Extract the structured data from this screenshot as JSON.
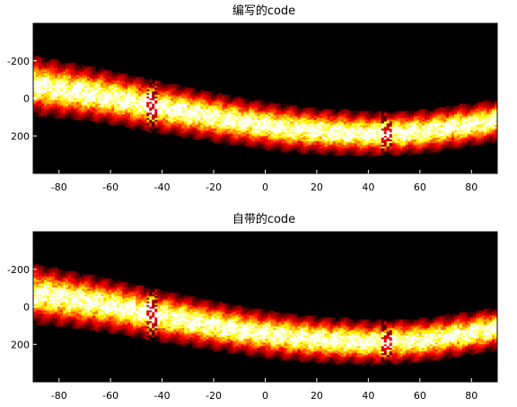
{
  "chart_data": [
    {
      "type": "heatmap",
      "title": "编写的code",
      "xlabel": "",
      "ylabel": "",
      "xlim": [
        -90,
        90
      ],
      "ylim": [
        -400,
        400
      ],
      "y_axis_reversed": true,
      "grid": false,
      "legend": "none",
      "colormap": "hot",
      "x_ticks": [
        -80,
        -60,
        -40,
        -20,
        0,
        20,
        40,
        60,
        80
      ],
      "x_tick_labels": [
        "-80",
        "-60",
        "-40",
        "-20",
        "0",
        "20",
        "40",
        "60",
        "80"
      ],
      "y_ticks": [
        -200,
        0,
        200
      ],
      "y_tick_labels": [
        "-200",
        "0",
        "200"
      ],
      "band": {
        "center_x": [
          -90,
          -80,
          -60,
          -40,
          -20,
          0,
          20,
          40,
          60,
          80,
          90
        ],
        "center_y": [
          -70,
          -50,
          -5,
          50,
          100,
          145,
          175,
          190,
          180,
          140,
          115
        ],
        "width": [
          270,
          260,
          245,
          235,
          225,
          215,
          210,
          205,
          200,
          195,
          195
        ]
      },
      "artifact_x": [
        -44,
        47
      ]
    },
    {
      "type": "heatmap",
      "title": "自带的code",
      "xlabel": "",
      "ylabel": "",
      "xlim": [
        -90,
        90
      ],
      "ylim": [
        -400,
        400
      ],
      "y_axis_reversed": true,
      "grid": false,
      "legend": "none",
      "colormap": "hot",
      "x_ticks": [
        -80,
        -60,
        -40,
        -20,
        0,
        20,
        40,
        60,
        80
      ],
      "x_tick_labels": [
        "-80",
        "-60",
        "-40",
        "-20",
        "0",
        "20",
        "40",
        "60",
        "80"
      ],
      "y_ticks": [
        -200,
        0,
        200
      ],
      "y_tick_labels": [
        "-200",
        "0",
        "200"
      ],
      "band": {
        "center_x": [
          -90,
          -80,
          -60,
          -40,
          -20,
          0,
          20,
          40,
          60,
          80,
          90
        ],
        "center_y": [
          -70,
          -50,
          -5,
          50,
          100,
          145,
          175,
          190,
          180,
          140,
          115
        ],
        "width": [
          270,
          260,
          245,
          235,
          225,
          215,
          210,
          205,
          200,
          195,
          195
        ]
      },
      "artifact_x": [
        -44,
        47
      ]
    }
  ],
  "colors": {
    "background": "#000000",
    "frame": "#000000",
    "page": "#ffffff",
    "colormap_stops": [
      "#000000",
      "#8a0000",
      "#ff0000",
      "#ff8000",
      "#ffff00",
      "#ffffff"
    ]
  }
}
